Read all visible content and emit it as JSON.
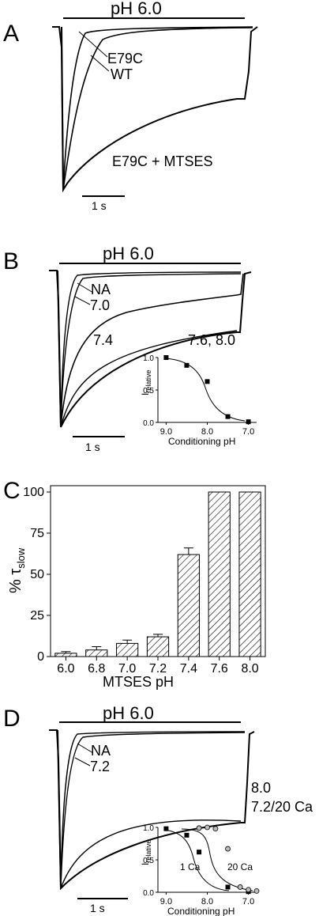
{
  "figure": {
    "panels": {
      "A": {
        "letter": "A",
        "condition": "pH 6.0",
        "curve_labels": [
          "E79C",
          "WT",
          "E79C + MTSES"
        ],
        "scale_bar": "1 s"
      },
      "B": {
        "letter": "B",
        "condition": "pH 6.0",
        "curve_labels": [
          "NA",
          "7.0",
          "7.4",
          "7.6, 8.0"
        ],
        "scale_bar": "1 s"
      },
      "C": {
        "letter": "C",
        "ylabel_main": "% τ",
        "ylabel_sub": "slow",
        "xlabel": "MTSES pH"
      },
      "D": {
        "letter": "D",
        "condition": "pH 6.0",
        "curve_labels": [
          "NA",
          "7.2",
          "8.0",
          "7.2/20 Ca"
        ],
        "scale_bar": "1 s"
      }
    }
  },
  "chart_data": [
    {
      "type": "line",
      "panel": "A",
      "description_labels": [
        "E79C",
        "WT",
        "E79C + MTSES"
      ],
      "annotation": "pH 6.0",
      "scalebar": "1 s"
    },
    {
      "type": "line",
      "panel": "B",
      "series_labels": [
        "NA",
        "7.0",
        "7.4",
        "7.6, 8.0"
      ],
      "annotation": "pH 6.0",
      "scalebar": "1 s",
      "inset": {
        "type": "scatter",
        "xlabel": "Conditioning pH",
        "ylabel": "I",
        "ylabel_sub": "relative",
        "x": [
          9.0,
          8.5,
          8.0,
          7.5,
          7.0
        ],
        "y": [
          1.0,
          0.88,
          0.63,
          0.09,
          0.01
        ],
        "xlim": [
          9.2,
          6.8
        ],
        "ylim": [
          0,
          1.05
        ],
        "xticks": [
          "9.0",
          "8.0",
          "7.0"
        ],
        "yticks": [
          "0.0",
          "0.5",
          "1.0"
        ]
      }
    },
    {
      "type": "bar",
      "panel": "C",
      "categories": [
        "6.0",
        "6.8",
        "7.0",
        "7.2",
        "7.4",
        "7.6",
        "8.0"
      ],
      "values": [
        2,
        4,
        8,
        12,
        62,
        100,
        100
      ],
      "errors": [
        1,
        2,
        2,
        1.5,
        4,
        0,
        0
      ],
      "ylim": [
        0,
        100
      ],
      "yticks": [
        "0",
        "25",
        "50",
        "75",
        "100"
      ],
      "xlabel": "MTSES pH",
      "ylabel": "% τslow",
      "hatched": true
    },
    {
      "type": "line",
      "panel": "D",
      "series_labels": [
        "NA",
        "7.2",
        "8.0",
        "7.2/20 Ca"
      ],
      "annotation": "pH 6.0",
      "scalebar": "1 s",
      "inset": {
        "type": "scatter",
        "xlabel": "Conditioning pH",
        "ylabel": "I",
        "ylabel_sub": "relative",
        "xticks": [
          "9.0",
          "8.0",
          "7.0"
        ],
        "yticks": [
          "0.0",
          "0.5",
          "1.0"
        ],
        "series": [
          {
            "name": "1 Ca",
            "x": [
              9.0,
              8.5,
              8.2,
              7.5,
              7.0
            ],
            "y": [
              0.98,
              0.88,
              0.62,
              0.08,
              0.01
            ]
          },
          {
            "name": "20 Ca",
            "x": [
              8.2,
              8.0,
              7.8,
              7.5,
              7.2,
              7.0,
              6.8
            ],
            "y": [
              0.99,
              1.0,
              0.98,
              0.67,
              0.08,
              0.04,
              0.02
            ]
          }
        ]
      }
    }
  ]
}
